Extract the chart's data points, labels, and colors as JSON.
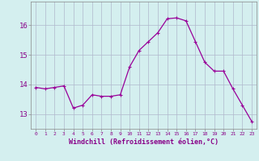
{
  "x": [
    0,
    1,
    2,
    3,
    4,
    5,
    6,
    7,
    8,
    9,
    10,
    11,
    12,
    13,
    14,
    15,
    16,
    17,
    18,
    19,
    20,
    21,
    22,
    23
  ],
  "y": [
    13.9,
    13.85,
    13.9,
    13.95,
    13.2,
    13.3,
    13.65,
    13.6,
    13.6,
    13.65,
    14.6,
    15.15,
    15.45,
    15.75,
    16.22,
    16.25,
    16.15,
    15.45,
    14.75,
    14.45,
    14.45,
    13.85,
    13.3,
    12.75
  ],
  "line_color": "#990099",
  "marker": "P",
  "marker_size": 2.5,
  "bg_color": "#d4efef",
  "grid_color": "#b0b8cc",
  "xlabel": "Windchill (Refroidissement éolien,°C)",
  "xlabel_color": "#880088",
  "tick_color": "#880088",
  "ylim": [
    12.5,
    16.8
  ],
  "yticks": [
    13,
    14,
    15,
    16
  ],
  "ytick_labels": [
    "13",
    "14",
    "15",
    "16"
  ],
  "xticks": [
    0,
    1,
    2,
    3,
    4,
    5,
    6,
    7,
    8,
    9,
    10,
    11,
    12,
    13,
    14,
    15,
    16,
    17,
    18,
    19,
    20,
    21,
    22,
    23
  ],
  "xtick_labels": [
    "0",
    "1",
    "2",
    "3",
    "4",
    "5",
    "6",
    "7",
    "8",
    "9",
    "10",
    "11",
    "12",
    "13",
    "14",
    "15",
    "16",
    "17",
    "18",
    "19",
    "20",
    "21",
    "22",
    "23"
  ]
}
